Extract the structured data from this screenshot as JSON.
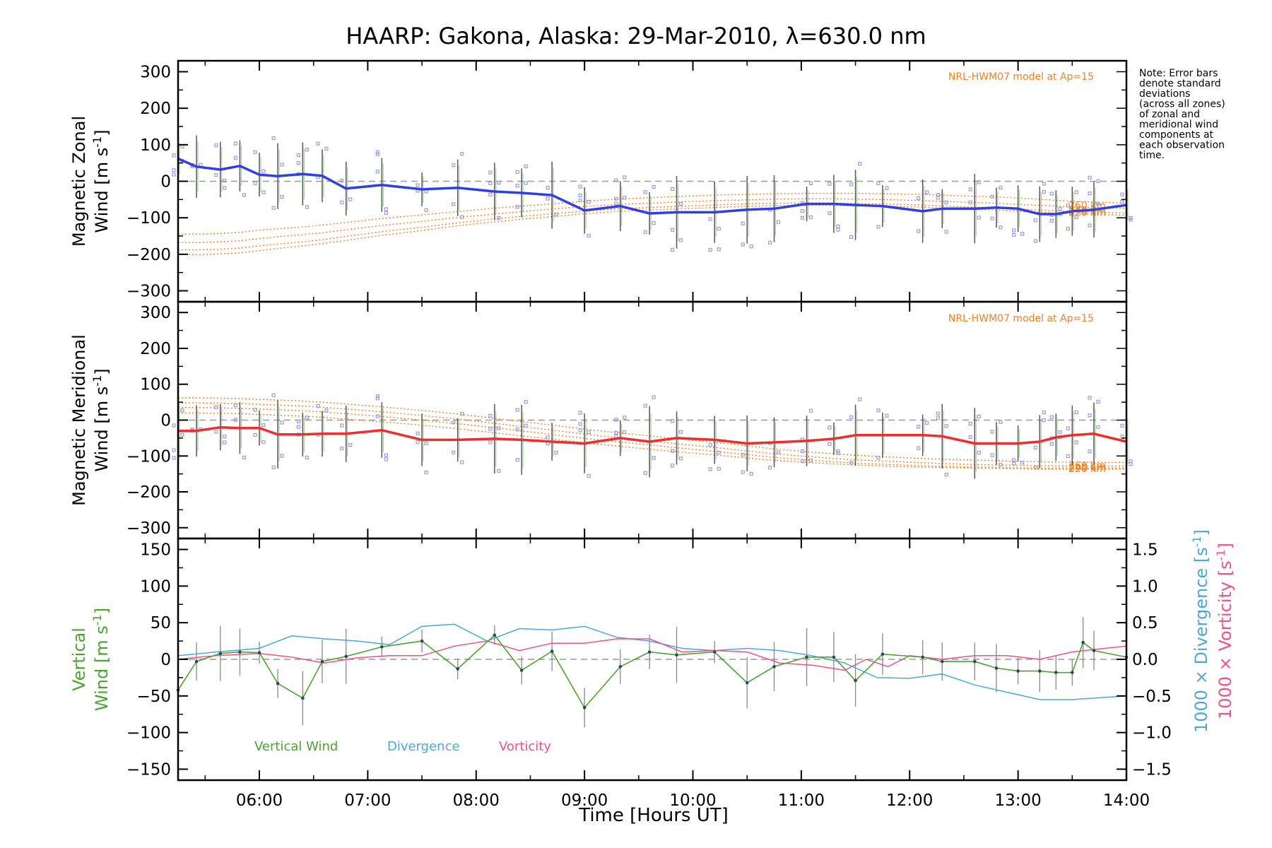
{
  "title": "HAARP: Gakona,  Alaska: 29-Mar-2010, λ=630.0 nm",
  "note": [
    "Note: Error bars",
    "denote standard",
    "deviations",
    "(across all zones)",
    "of zonal and",
    "meridional wind",
    "components at",
    "each observation",
    "time."
  ],
  "colors": {
    "zonal": "#2f3fe8",
    "meridional": "#f02d2d",
    "vertical": "#4aa530",
    "divergence": "#4aa8d8",
    "vorticity": "#f0508c",
    "model": "#f08020",
    "errorbar": "#555555",
    "zones": "#9a9ae0"
  },
  "chart_data": [
    {
      "type": "line",
      "name": "zonal-panel",
      "title": "",
      "xlabel": "",
      "ylabel_line1": "Magnetic Zonal",
      "ylabel_line2": "Wind [m s",
      "ylabel_sup": "-1",
      "ylabel_end": "]",
      "ylim": [
        -330,
        330
      ],
      "yticks": [
        300,
        200,
        100,
        0,
        -100,
        -200,
        -300
      ],
      "model_label": "NRL-HWM07 model at Ap=15",
      "model_alt_labels": [
        "260 km",
        "240 km",
        "220 km"
      ],
      "x": [
        5.25,
        5.42,
        5.64,
        5.82,
        6.0,
        6.17,
        6.4,
        6.58,
        6.8,
        7.13,
        7.5,
        7.83,
        8.17,
        8.42,
        8.7,
        9.0,
        9.33,
        9.6,
        9.85,
        10.2,
        10.5,
        10.75,
        11.05,
        11.3,
        11.5,
        11.75,
        12.12,
        12.3,
        12.6,
        12.8,
        13.0,
        13.2,
        13.35,
        13.5,
        13.7,
        14.0
      ],
      "series": [
        {
          "role": "wind",
          "values": [
            62,
            40,
            32,
            42,
            18,
            14,
            20,
            15,
            -20,
            -10,
            -22,
            -18,
            -28,
            -32,
            -38,
            -80,
            -68,
            -88,
            -85,
            -85,
            -78,
            -75,
            -62,
            -62,
            -65,
            -68,
            -82,
            -75,
            -75,
            -72,
            -75,
            -90,
            -90,
            -82,
            -78,
            -65
          ]
        },
        {
          "role": "model",
          "values": [
            -145,
            -145,
            -143,
            -140,
            -134,
            -130,
            -125,
            -120,
            -113,
            -102,
            -92,
            -83,
            -74,
            -68,
            -62,
            -55,
            -48,
            -45,
            -42,
            -38,
            -36,
            -34,
            -33,
            -33,
            -33,
            -34,
            -36,
            -38,
            -41,
            -43,
            -46,
            -49,
            -52,
            -55,
            -57,
            -60
          ]
        },
        {
          "role": "model",
          "values": [
            -168,
            -168,
            -166,
            -163,
            -157,
            -152,
            -146,
            -141,
            -133,
            -121,
            -110,
            -99,
            -90,
            -83,
            -76,
            -69,
            -63,
            -60,
            -57,
            -53,
            -51,
            -49,
            -48,
            -48,
            -49,
            -50,
            -53,
            -55,
            -58,
            -60,
            -63,
            -66,
            -68,
            -70,
            -72,
            -74
          ]
        },
        {
          "role": "model",
          "values": [
            -188,
            -188,
            -186,
            -183,
            -177,
            -172,
            -166,
            -160,
            -151,
            -138,
            -126,
            -114,
            -103,
            -96,
            -89,
            -82,
            -75,
            -72,
            -69,
            -65,
            -62,
            -60,
            -60,
            -60,
            -61,
            -62,
            -65,
            -68,
            -71,
            -73,
            -76,
            -79,
            -81,
            -83,
            -85,
            -87
          ]
        },
        {
          "role": "model",
          "values": [
            -200,
            -201,
            -199,
            -196,
            -190,
            -184,
            -177,
            -171,
            -162,
            -148,
            -135,
            -122,
            -111,
            -104,
            -97,
            -89,
            -82,
            -79,
            -76,
            -72,
            -69,
            -67,
            -66,
            -66,
            -67,
            -68,
            -71,
            -74,
            -77,
            -79,
            -82,
            -85,
            -87,
            -89,
            -91,
            -93
          ]
        }
      ]
    },
    {
      "type": "line",
      "name": "meridional-panel",
      "title": "",
      "xlabel": "",
      "ylabel_line1": "Magnetic Meridional",
      "ylabel_line2": "Wind [m s",
      "ylabel_sup": "-1",
      "ylabel_end": "]",
      "ylim": [
        -330,
        330
      ],
      "yticks": [
        300,
        200,
        100,
        0,
        -100,
        -200,
        -300
      ],
      "model_label": "NRL-HWM07 model at Ap=15",
      "model_alt_labels": [
        "260 km",
        "240 km",
        "220 km"
      ],
      "x": [
        5.25,
        5.42,
        5.64,
        5.82,
        6.0,
        6.17,
        6.4,
        6.58,
        6.8,
        7.13,
        7.5,
        7.83,
        8.17,
        8.42,
        8.7,
        9.0,
        9.33,
        9.6,
        9.85,
        10.2,
        10.5,
        10.75,
        11.05,
        11.3,
        11.5,
        11.75,
        12.12,
        12.3,
        12.6,
        12.8,
        13.0,
        13.2,
        13.35,
        13.5,
        13.7,
        14.0
      ],
      "series": [
        {
          "role": "wind",
          "values": [
            -30,
            -30,
            -20,
            -22,
            -22,
            -40,
            -40,
            -38,
            -38,
            -28,
            -55,
            -55,
            -52,
            -55,
            -60,
            -65,
            -50,
            -60,
            -50,
            -55,
            -65,
            -62,
            -58,
            -52,
            -42,
            -42,
            -42,
            -45,
            -65,
            -65,
            -65,
            -60,
            -48,
            -42,
            -38,
            -60
          ]
        },
        {
          "role": "model",
          "values": [
            62,
            62,
            61,
            60,
            58,
            56,
            53,
            50,
            45,
            37,
            27,
            17,
            5,
            -4,
            -14,
            -25,
            -36,
            -44,
            -52,
            -62,
            -72,
            -80,
            -88,
            -94,
            -98,
            -102,
            -107,
            -109,
            -112,
            -113,
            -115,
            -116,
            -117,
            -117,
            -118,
            -118
          ]
        },
        {
          "role": "model",
          "values": [
            48,
            48,
            47,
            46,
            44,
            42,
            39,
            36,
            31,
            23,
            13,
            3,
            -9,
            -18,
            -28,
            -39,
            -50,
            -58,
            -66,
            -76,
            -86,
            -94,
            -101,
            -107,
            -111,
            -114,
            -119,
            -121,
            -124,
            -125,
            -126,
            -127,
            -128,
            -128,
            -128,
            -128
          ]
        },
        {
          "role": "model",
          "values": [
            35,
            35,
            34,
            33,
            31,
            29,
            26,
            23,
            18,
            10,
            0,
            -10,
            -21,
            -30,
            -40,
            -51,
            -61,
            -69,
            -77,
            -87,
            -96,
            -104,
            -111,
            -116,
            -120,
            -123,
            -127,
            -129,
            -131,
            -132,
            -133,
            -134,
            -134,
            -134,
            -134,
            -134
          ]
        },
        {
          "role": "model",
          "values": [
            20,
            20,
            19,
            18,
            16,
            14,
            11,
            8,
            3,
            -5,
            -14,
            -24,
            -35,
            -44,
            -53,
            -63,
            -73,
            -81,
            -88,
            -97,
            -106,
            -112,
            -118,
            -122,
            -125,
            -128,
            -131,
            -132,
            -134,
            -135,
            -136,
            -137,
            -137,
            -137,
            -137,
            -137
          ]
        }
      ]
    },
    {
      "type": "line",
      "name": "vertical-panel",
      "title": "",
      "xlabel": "Time [Hours UT]",
      "xticks": [
        "06:00",
        "07:00",
        "08:00",
        "09:00",
        "10:00",
        "11:00",
        "12:00",
        "13:00",
        "14:00"
      ],
      "xlim": [
        5.25,
        14.0
      ],
      "ylabel_line1": "Vertical",
      "ylabel_line2": "Wind [m s",
      "ylabel_sup": "-1",
      "ylabel_end": "]",
      "ylim": [
        -165,
        165
      ],
      "yticks": [
        150,
        100,
        50,
        0,
        -50,
        -100,
        -150
      ],
      "y2lim": [
        -1.65,
        1.65
      ],
      "y2ticks": [
        "1.5",
        "1.0",
        "0.5",
        "0.0",
        "−0.5",
        "−1.0",
        "−1.5"
      ],
      "y2label_div": "1000 × Divergence [s",
      "y2label_vor": "1000 × Vorticity [s",
      "y2label_sup": "-1",
      "y2label_end": "]",
      "legend": [
        "Vertical Wind",
        "Divergence",
        "Vorticity"
      ],
      "vertical_x": [
        5.25,
        5.42,
        5.64,
        5.82,
        6.0,
        6.17,
        6.4,
        6.58,
        6.8,
        7.13,
        7.5,
        7.83,
        8.17,
        8.42,
        8.7,
        9.0,
        9.33,
        9.6,
        9.85,
        10.2,
        10.5,
        10.75,
        11.05,
        11.3,
        11.5,
        11.75,
        12.12,
        12.3,
        12.6,
        12.8,
        13.0,
        13.2,
        13.35,
        13.5,
        13.6,
        13.7,
        14.0
      ],
      "vertical": [
        -42,
        -3,
        8,
        10,
        9,
        -33,
        -53,
        -3,
        4,
        17,
        25,
        -13,
        33,
        -15,
        11,
        -66,
        -10,
        10,
        6,
        10,
        -32,
        -10,
        3,
        3,
        -29,
        7,
        3,
        -3,
        -3,
        -12,
        -16,
        -16,
        -18,
        -18,
        23,
        12,
        3
      ],
      "divergence_x": [
        5.25,
        5.6,
        6.0,
        6.3,
        6.6,
        6.9,
        7.2,
        7.5,
        7.8,
        8.1,
        8.4,
        8.7,
        9.0,
        9.3,
        9.6,
        9.9,
        10.2,
        10.5,
        10.8,
        11.1,
        11.4,
        11.7,
        12.0,
        12.3,
        12.6,
        12.9,
        13.2,
        13.5,
        13.8,
        14.0
      ],
      "divergence": [
        0.05,
        0.1,
        0.15,
        0.32,
        0.28,
        0.25,
        0.2,
        0.45,
        0.48,
        0.25,
        0.42,
        0.4,
        0.45,
        0.3,
        0.25,
        0.15,
        0.12,
        0.15,
        0.12,
        0.05,
        -0.05,
        -0.25,
        -0.26,
        -0.2,
        -0.35,
        -0.45,
        -0.55,
        -0.55,
        -0.52,
        -0.5
      ],
      "vorticity_x": [
        5.25,
        5.6,
        6.0,
        6.3,
        6.6,
        6.9,
        7.2,
        7.5,
        7.8,
        8.1,
        8.4,
        8.7,
        9.0,
        9.3,
        9.6,
        9.9,
        10.2,
        10.5,
        10.8,
        11.1,
        11.4,
        11.6,
        11.8,
        12.0,
        12.3,
        12.6,
        12.9,
        13.2,
        13.5,
        13.8,
        14.0
      ],
      "vorticity": [
        0.0,
        0.05,
        0.08,
        0.03,
        -0.05,
        0.02,
        0.05,
        0.05,
        0.18,
        0.25,
        0.12,
        0.22,
        0.22,
        0.28,
        0.28,
        0.1,
        0.12,
        0.1,
        -0.05,
        -0.08,
        -0.15,
        0.0,
        -0.1,
        0.05,
        0.0,
        0.05,
        0.05,
        0.0,
        0.1,
        0.15,
        0.18
      ]
    }
  ]
}
